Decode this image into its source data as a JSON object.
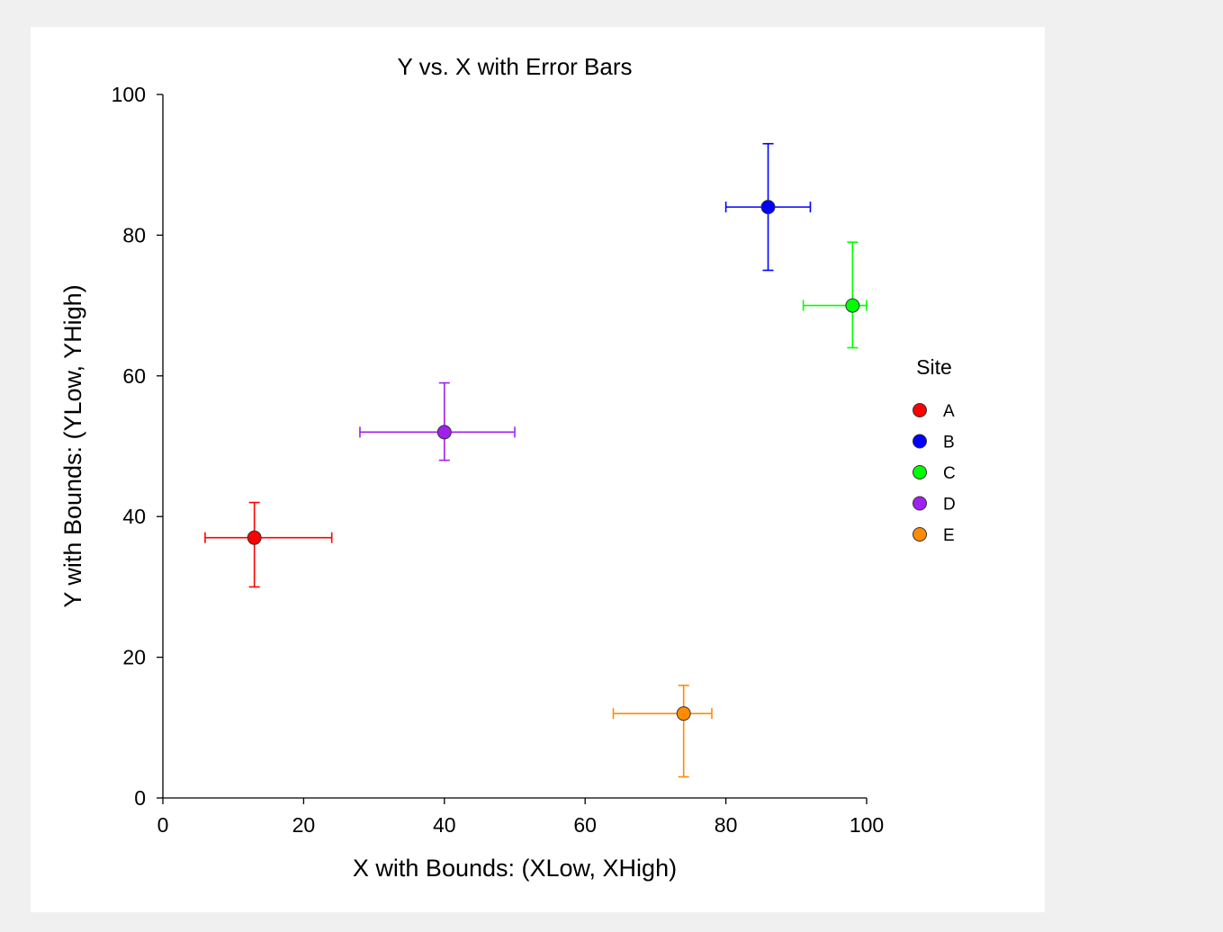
{
  "chart_data": {
    "type": "scatter",
    "title": "Y vs. X with Error Bars",
    "xlabel": "X with Bounds: (XLow, XHigh)",
    "ylabel": "Y with Bounds: (YLow, YHigh)",
    "xlim": [
      0,
      100
    ],
    "ylim": [
      0,
      100
    ],
    "xticks": [
      "0",
      "20",
      "40",
      "60",
      "80",
      "100"
    ],
    "yticks": [
      "0",
      "20",
      "40",
      "60",
      "80",
      "100"
    ],
    "grid": false,
    "legend": {
      "title": "Site",
      "placement": "right"
    },
    "series": [
      {
        "name": "A",
        "color": "#ff0000",
        "x": 13,
        "y": 37,
        "xlow": 6,
        "xhigh": 24,
        "ylow": 30,
        "yhigh": 42
      },
      {
        "name": "B",
        "color": "#0000ff",
        "x": 86,
        "y": 84,
        "xlow": 80,
        "xhigh": 92,
        "ylow": 75,
        "yhigh": 93
      },
      {
        "name": "C",
        "color": "#00ff00",
        "x": 98,
        "y": 70,
        "xlow": 91,
        "xhigh": 100,
        "ylow": 64,
        "yhigh": 79
      },
      {
        "name": "D",
        "color": "#a020f0",
        "x": 40,
        "y": 52,
        "xlow": 28,
        "xhigh": 50,
        "ylow": 48,
        "yhigh": 59
      },
      {
        "name": "E",
        "color": "#ff8c00",
        "x": 74,
        "y": 12,
        "xlow": 64,
        "xhigh": 78,
        "ylow": 3,
        "yhigh": 16
      }
    ]
  }
}
